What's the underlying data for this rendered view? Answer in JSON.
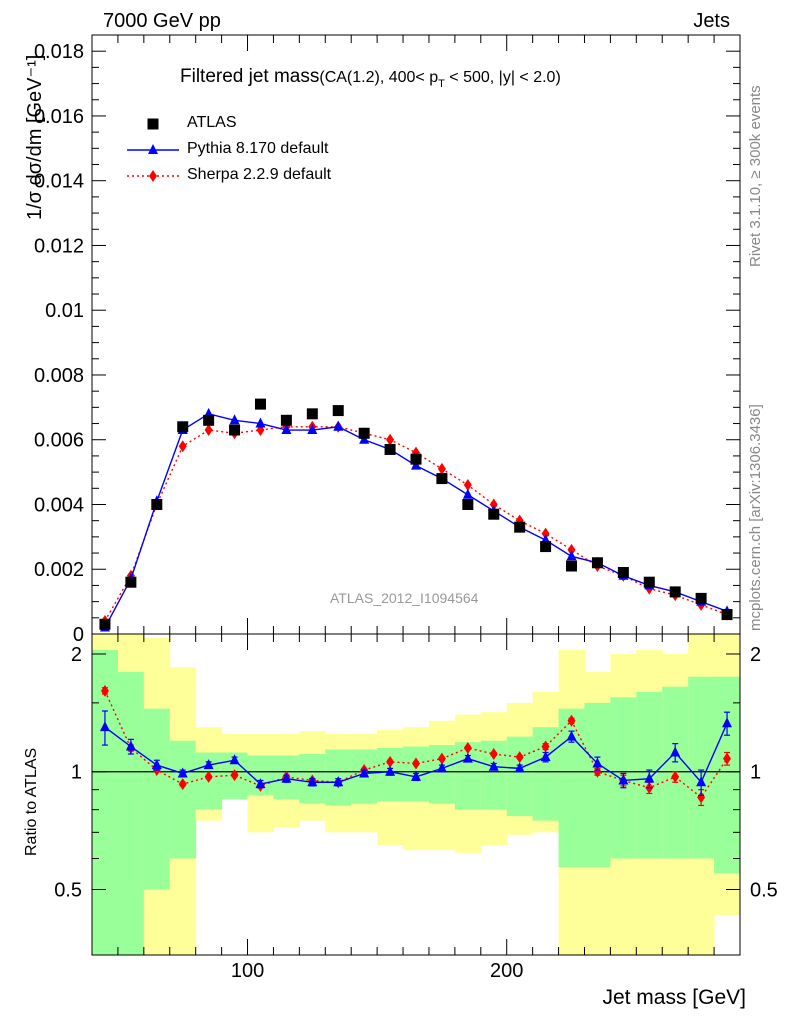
{
  "header": {
    "left": "7000 GeV pp",
    "right": "Jets"
  },
  "side_labels": {
    "rivet": "Rivet 3.1.10, ≥ 300k events",
    "mcplots": "mcplots.cern.ch [arXiv:1306.3436]"
  },
  "watermark": "ATLAS_2012_I1094564",
  "colors": {
    "atlas": "#000000",
    "pythia": "#0000ff",
    "sherpa": "#ff0000",
    "band_inner": "#99ff99",
    "band_outer": "#ffff99"
  },
  "chart_data": [
    {
      "type": "scatter",
      "title_main": "Filtered jet mass",
      "title_sub": "(CA(1.2), 400< p",
      "title_sub_index": "T",
      "title_sub_rest": " < 500, |y| < 2.0)",
      "ylabel": "1/σ dσ/dm [GeV⁻¹]",
      "xlim": [
        40,
        290
      ],
      "ylim": [
        0,
        0.0185
      ],
      "yticks": [
        0,
        0.002,
        0.004,
        0.006,
        0.008,
        0.01,
        0.012,
        0.014,
        0.016,
        0.018
      ],
      "ytick_labels": [
        "0",
        "0.002",
        "0.004",
        "0.006",
        "0.008",
        "0.01",
        "0.012",
        "0.014",
        "0.016",
        "0.018"
      ],
      "x": [
        45,
        55,
        65,
        75,
        85,
        95,
        105,
        115,
        125,
        135,
        145,
        155,
        165,
        175,
        185,
        195,
        205,
        215,
        225,
        235,
        245,
        255,
        265,
        275,
        285
      ],
      "series": [
        {
          "name": "ATLAS",
          "marker": "square",
          "values": [
            0.0003,
            0.0016,
            0.004,
            0.0064,
            0.0066,
            0.0063,
            0.0071,
            0.0066,
            0.0068,
            0.0069,
            0.0062,
            0.0057,
            0.0054,
            0.0048,
            0.004,
            0.0037,
            0.0033,
            0.0027,
            0.0021,
            0.0022,
            0.0019,
            0.0016,
            0.0013,
            0.0011,
            0.0006
          ]
        },
        {
          "name": "Pythia 8.170 default",
          "marker": "triangle",
          "values": [
            0.0002,
            0.0017,
            0.0041,
            0.0063,
            0.0068,
            0.0066,
            0.0065,
            0.0063,
            0.0063,
            0.0064,
            0.006,
            0.0057,
            0.0052,
            0.0048,
            0.0043,
            0.0038,
            0.0033,
            0.0029,
            0.0024,
            0.0022,
            0.0018,
            0.0015,
            0.0013,
            0.001,
            0.0007
          ]
        },
        {
          "name": "Sherpa 2.2.9 default",
          "marker": "diamond",
          "values": [
            0.0004,
            0.0018,
            0.004,
            0.0058,
            0.0063,
            0.0062,
            0.0063,
            0.0064,
            0.0064,
            0.0064,
            0.0062,
            0.006,
            0.0056,
            0.0051,
            0.0046,
            0.004,
            0.0035,
            0.0031,
            0.0026,
            0.0021,
            0.0018,
            0.0014,
            0.0012,
            0.0009,
            0.0006
          ]
        }
      ]
    },
    {
      "type": "line",
      "ylabel": "Ratio to ATLAS",
      "xlabel": "Jet mass [GeV]",
      "xlim": [
        40,
        290
      ],
      "ylim": [
        0.34,
        2.25
      ],
      "xticks": [
        100,
        200
      ],
      "xtick_labels": [
        "100",
        "200"
      ],
      "yticks": [
        0.5,
        1,
        2
      ],
      "ytick_labels": [
        "0.5",
        "1",
        "2"
      ],
      "x": [
        45,
        55,
        65,
        75,
        85,
        95,
        105,
        115,
        125,
        135,
        145,
        155,
        165,
        175,
        185,
        195,
        205,
        215,
        225,
        235,
        245,
        255,
        265,
        275,
        285
      ],
      "bins": [
        40,
        50,
        60,
        70,
        80,
        90,
        100,
        110,
        120,
        130,
        140,
        150,
        160,
        170,
        180,
        190,
        200,
        210,
        220,
        230,
        240,
        250,
        260,
        270,
        280,
        290
      ],
      "band_inner": {
        "low": [
          0.34,
          0.34,
          0.5,
          0.6,
          0.8,
          0.85,
          0.87,
          0.85,
          0.83,
          0.82,
          0.83,
          0.84,
          0.84,
          0.83,
          0.8,
          0.8,
          0.77,
          0.75,
          0.57,
          0.57,
          0.6,
          0.6,
          0.6,
          0.6,
          0.55
        ],
        "high": [
          2.05,
          1.8,
          1.45,
          1.2,
          1.12,
          1.12,
          1.1,
          1.1,
          1.11,
          1.14,
          1.14,
          1.15,
          1.16,
          1.17,
          1.19,
          1.2,
          1.23,
          1.3,
          1.45,
          1.5,
          1.55,
          1.6,
          1.65,
          1.75,
          1.75
        ]
      },
      "band_outer": {
        "low": [
          0.34,
          0.34,
          0.34,
          0.34,
          0.75,
          0.9,
          0.7,
          0.72,
          0.75,
          0.7,
          0.7,
          0.65,
          0.63,
          0.63,
          0.62,
          0.65,
          0.69,
          0.7,
          0.34,
          0.34,
          0.34,
          0.34,
          0.34,
          0.34,
          0.43
        ],
        "high": [
          2.25,
          2.25,
          2.2,
          1.85,
          1.3,
          1.25,
          1.25,
          1.25,
          1.27,
          1.25,
          1.25,
          1.28,
          1.3,
          1.35,
          1.4,
          1.42,
          1.5,
          1.6,
          2.05,
          1.8,
          2.0,
          2.05,
          2.0,
          2.25,
          2.25
        ]
      },
      "series": [
        {
          "name": "Pythia 8.170 default",
          "values": [
            1.3,
            1.16,
            1.04,
            0.99,
            1.04,
            1.07,
            0.93,
            0.96,
            0.94,
            0.94,
            0.99,
            1.0,
            0.97,
            1.02,
            1.08,
            1.03,
            1.02,
            1.09,
            1.23,
            1.05,
            0.95,
            0.96,
            1.12,
            0.94,
            1.33
          ],
          "errors": [
            0.13,
            0.05,
            0.03,
            0.02,
            0.02,
            0.02,
            0.02,
            0.02,
            0.02,
            0.02,
            0.02,
            0.02,
            0.02,
            0.02,
            0.02,
            0.02,
            0.02,
            0.03,
            0.04,
            0.04,
            0.04,
            0.05,
            0.06,
            0.07,
            0.09
          ]
        },
        {
          "name": "Sherpa 2.2.9 default",
          "values": [
            1.61,
            1.15,
            1.01,
            0.93,
            0.97,
            0.98,
            0.92,
            0.97,
            0.95,
            0.94,
            1.01,
            1.06,
            1.05,
            1.08,
            1.15,
            1.11,
            1.09,
            1.16,
            1.35,
            1.0,
            0.95,
            0.91,
            0.97,
            0.86,
            1.08
          ],
          "errors": [
            0.03,
            0.02,
            0.01,
            0.01,
            0.01,
            0.01,
            0.01,
            0.01,
            0.01,
            0.01,
            0.01,
            0.01,
            0.01,
            0.01,
            0.01,
            0.01,
            0.01,
            0.02,
            0.02,
            0.02,
            0.03,
            0.03,
            0.03,
            0.04,
            0.04
          ]
        }
      ]
    }
  ]
}
